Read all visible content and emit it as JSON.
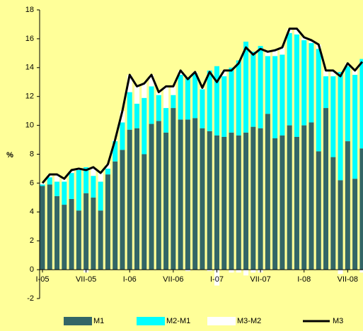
{
  "chart_data": {
    "type": "bar",
    "stacked": true,
    "y_label": "%",
    "categories": [
      "I-05",
      null,
      null,
      null,
      null,
      null,
      "VII-05",
      null,
      null,
      null,
      null,
      null,
      "I-06",
      null,
      null,
      null,
      null,
      null,
      "VII-06",
      null,
      null,
      null,
      null,
      null,
      "I-07",
      null,
      null,
      null,
      null,
      null,
      "VII-07",
      null,
      null,
      null,
      null,
      null,
      "I-08",
      null,
      null,
      null,
      null,
      null,
      "VII-08",
      null,
      null
    ],
    "series": [
      {
        "name": "M1",
        "color": "#336666",
        "values": [
          5.8,
          5.9,
          5.1,
          4.5,
          4.9,
          4.1,
          5.3,
          5.0,
          4.1,
          6.6,
          7.5,
          8.3,
          9.7,
          9.8,
          8.0,
          10.1,
          10.3,
          9.5,
          11.2,
          10.4,
          10.4,
          10.5,
          9.8,
          9.6,
          9.3,
          9.2,
          9.5,
          9.3,
          9.5,
          9.9,
          9.8,
          10.8,
          9.1,
          9.3,
          10.0,
          9.2,
          10.0,
          10.2,
          8.2,
          11.2,
          7.8,
          6.2,
          8.9,
          6.3,
          8.4
        ]
      },
      {
        "name": "M2-M1",
        "color": "#00FFFF",
        "values": [
          0.1,
          0.5,
          1.0,
          1.6,
          1.8,
          2.8,
          1.8,
          1.5,
          2.0,
          0.4,
          1.4,
          1.9,
          2.6,
          1.7,
          3.9,
          2.6,
          1.8,
          1.7,
          0.9,
          3.1,
          2.9,
          3.1,
          2.7,
          4.2,
          4.8,
          4.2,
          4.5,
          5.2,
          6.3,
          5.2,
          5.7,
          4.0,
          5.7,
          5.6,
          6.4,
          7.1,
          5.9,
          5.5,
          7.1,
          2.2,
          5.6,
          7.5,
          5.2,
          7.2,
          6.2
        ]
      },
      {
        "name": "M3-M2",
        "color": "#FFFFFF",
        "values": [
          0.1,
          0.2,
          0.5,
          0.2,
          0.2,
          0.1,
          -0.2,
          0.6,
          0.6,
          0.3,
          0.1,
          0.8,
          1.2,
          1.2,
          1.0,
          0.8,
          0.2,
          1.5,
          0.6,
          0.3,
          -0.1,
          0.1,
          0.1,
          -0.1,
          -1.1,
          0.4,
          -0.2,
          -0.2,
          -0.4,
          -0.2,
          -0.2,
          0.3,
          0.4,
          0.5,
          0.3,
          0.4,
          0.2,
          0.2,
          0.3,
          0.4,
          0.4,
          -0.3,
          0.2,
          0.3,
          -0.2
        ]
      },
      {
        "name": "M3",
        "color": "#000000",
        "type": "line",
        "values": [
          6.0,
          6.6,
          6.6,
          6.3,
          6.9,
          7.0,
          6.9,
          7.1,
          6.7,
          7.3,
          9.0,
          11.0,
          13.5,
          12.7,
          12.9,
          13.5,
          12.3,
          12.7,
          12.7,
          13.8,
          13.2,
          13.7,
          12.6,
          13.7,
          13.0,
          13.8,
          13.8,
          14.3,
          15.4,
          14.9,
          15.3,
          15.1,
          15.2,
          15.4,
          16.7,
          16.7,
          16.1,
          15.9,
          15.6,
          13.8,
          13.8,
          13.4,
          14.3,
          13.8,
          14.4
        ]
      }
    ],
    "ylim": [
      -2,
      18
    ],
    "yticks": [
      -2,
      0,
      2,
      4,
      6,
      8,
      10,
      12,
      14,
      16,
      18
    ]
  }
}
